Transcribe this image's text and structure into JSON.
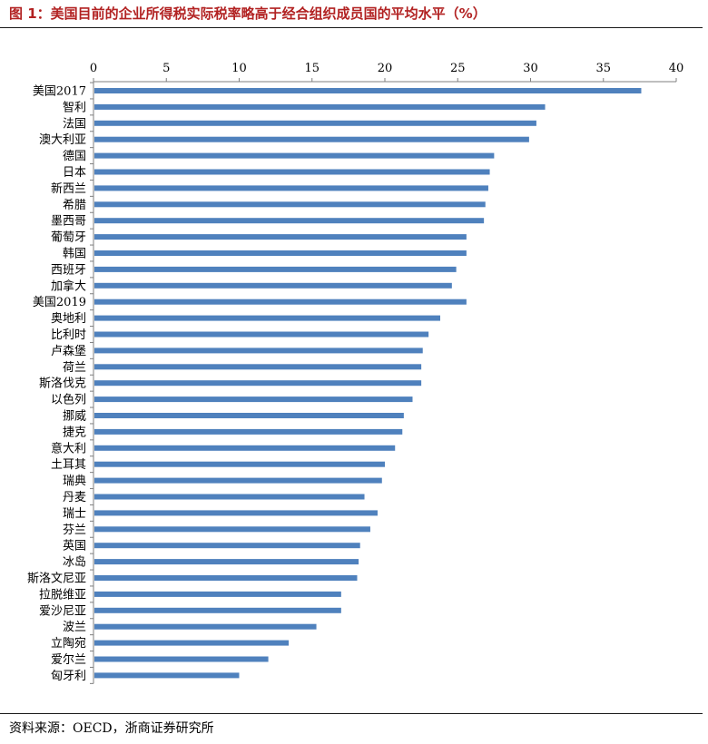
{
  "header": {
    "title": "图 1：美国目前的企业所得税实际税率略高于经合组织成员国的平均水平（%）"
  },
  "footer": {
    "source": "资料来源：OECD，浙商证券研究所"
  },
  "chart_data": {
    "type": "bar",
    "orientation": "horizontal",
    "title": "图 1：美国目前的企业所得税实际税率略高于经合组织成员国的平均水平（%）",
    "xlabel": "",
    "ylabel": "",
    "xlim": [
      0,
      40
    ],
    "xticks": [
      0,
      5,
      10,
      15,
      20,
      25,
      30,
      35,
      40
    ],
    "x_axis_position": "top",
    "grid": false,
    "bar_color": "#4f81bd",
    "categories": [
      "美国2017",
      "智利",
      "法国",
      "澳大利亚",
      "德国",
      "日本",
      "新西兰",
      "希腊",
      "墨西哥",
      "葡萄牙",
      "韩国",
      "西班牙",
      "加拿大",
      "美国2019",
      "奥地利",
      "比利时",
      "卢森堡",
      "荷兰",
      "斯洛伐克",
      "以色列",
      "挪威",
      "捷克",
      "意大利",
      "土耳其",
      "瑞典",
      "丹麦",
      "瑞士",
      "芬兰",
      "英国",
      "冰岛",
      "斯洛文尼亚",
      "拉脱维亚",
      "爱沙尼亚",
      "波兰",
      "立陶宛",
      "爱尔兰",
      "匈牙利"
    ],
    "values": [
      37.6,
      31.0,
      30.4,
      29.9,
      27.5,
      27.2,
      27.1,
      26.9,
      26.8,
      25.6,
      25.6,
      24.9,
      24.6,
      25.6,
      23.8,
      23.0,
      22.6,
      22.5,
      22.5,
      21.9,
      21.3,
      21.2,
      20.7,
      20.0,
      19.8,
      18.6,
      19.5,
      19.0,
      18.3,
      18.2,
      18.1,
      17.0,
      17.0,
      15.3,
      13.4,
      12.0,
      10.0
    ]
  }
}
